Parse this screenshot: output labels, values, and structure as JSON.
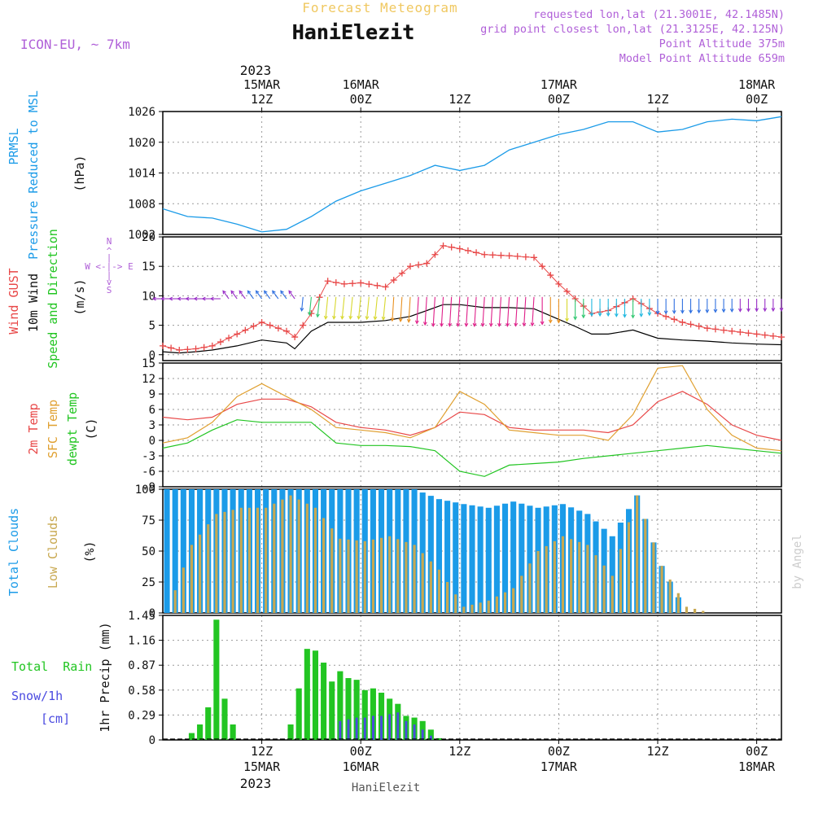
{
  "header": {
    "title": "Forecast Meteogram",
    "location": "HaniElezit",
    "model": "ICON-EU, ~ 7km",
    "requested": "requested lon,lat (21.3001E, 42.1485N)",
    "gridpoint": "grid point closest lon,lat (21.3125E, 42.125N)",
    "point_alt": "Point Altitude 375m",
    "model_alt": "Model Point Altitude 659m",
    "year": "2023",
    "footer": "HaniElezit",
    "credit": "by Angel"
  },
  "time_axis": {
    "start_hour": 0,
    "end_hour": 75,
    "top_ticks": [
      {
        "h": 12,
        "l1": "15MAR",
        "l2": "12Z"
      },
      {
        "h": 24,
        "l1": "16MAR",
        "l2": "00Z"
      },
      {
        "h": 36,
        "l1": "",
        "l2": "12Z"
      },
      {
        "h": 48,
        "l1": "17MAR",
        "l2": "00Z"
      },
      {
        "h": 60,
        "l1": "",
        "l2": "12Z"
      },
      {
        "h": 72,
        "l1": "18MAR",
        "l2": "00Z"
      }
    ],
    "bottom_ticks": [
      {
        "h": 12,
        "l1": "12Z",
        "l2": "15MAR"
      },
      {
        "h": 24,
        "l1": "00Z",
        "l2": "16MAR"
      },
      {
        "h": 36,
        "l1": "12Z",
        "l2": ""
      },
      {
        "h": 48,
        "l1": "00Z",
        "l2": "17MAR"
      },
      {
        "h": 60,
        "l1": "12Z",
        "l2": ""
      },
      {
        "h": 72,
        "l1": "00Z",
        "l2": "18MAR"
      }
    ]
  },
  "panel_labels": {
    "p1": {
      "a": "PRMSL",
      "b": "Pressure Reduced to MSL",
      "unit": "(hPa)"
    },
    "p2": {
      "a": "Wind GUST",
      "b": "10m Wind",
      "c": "Speed and Direction",
      "unit": "(m/s)",
      "rose": "W <-|-> E"
    },
    "p3": {
      "a": "2m Temp",
      "b": "SFC Temp",
      "c": "dewpt Temp",
      "unit": "(C)"
    },
    "p4": {
      "a": "Total Clouds",
      "b": "Low Clouds",
      "unit": "(%)"
    },
    "p5": {
      "a": "Total  Rain",
      "b": "Snow/1h",
      "c": "[cm]",
      "unit": "1hr Precip (mm)"
    }
  },
  "colors": {
    "pressure": "#1b9be8",
    "gust": "#e84848",
    "wind": "#000000",
    "temp2m": "#e84848",
    "sfc": "#e0a030",
    "dewpt": "#22c522",
    "total_clouds": "#1b9be8",
    "low_clouds": "#c8a850",
    "rain": "#22c522",
    "snow": "#4a4ae0",
    "header_gold": "#f0c860",
    "header_purple": "#b060d8"
  },
  "chart_data": [
    {
      "type": "line",
      "name": "PRMSL",
      "ylim": [
        1002,
        1026
      ],
      "yticks": [
        1002,
        1008,
        1014,
        1020,
        1026
      ],
      "x": [
        0,
        3,
        6,
        9,
        12,
        15,
        18,
        21,
        24,
        27,
        30,
        33,
        36,
        39,
        42,
        45,
        48,
        51,
        54,
        57,
        60,
        63,
        66,
        69,
        72,
        75
      ],
      "series": [
        {
          "values": [
            1007.0,
            1005.5,
            1005.2,
            1004.0,
            1002.5,
            1003.0,
            1005.5,
            1008.5,
            1010.5,
            1012.0,
            1013.5,
            1015.5,
            1014.5,
            1015.5,
            1018.5,
            1020.0,
            1021.5,
            1022.5,
            1024.0,
            1024.0,
            1022.0,
            1022.5,
            1024.0,
            1024.5,
            1024.2,
            1025.0
          ]
        }
      ]
    },
    {
      "type": "line",
      "name": "Wind",
      "ylim": [
        -1,
        20
      ],
      "yticks": [
        0,
        5,
        10,
        15,
        20
      ],
      "x": [
        0,
        2,
        4,
        6,
        9,
        12,
        15,
        16,
        18,
        20,
        22,
        24,
        27,
        30,
        32,
        34,
        36,
        39,
        42,
        45,
        48,
        50,
        52,
        54,
        57,
        60,
        63,
        66,
        69,
        72,
        75
      ],
      "series": [
        {
          "values": [
            1.5,
            0.8,
            1.0,
            1.5,
            3.5,
            5.5,
            4.0,
            3.0,
            7.0,
            12.5,
            12.0,
            12.2,
            11.5,
            15.0,
            15.5,
            18.5,
            18.0,
            17.0,
            16.8,
            16.5,
            12.0,
            9.5,
            7.0,
            7.5,
            9.5,
            7.0,
            5.5,
            4.5,
            4.0,
            3.5,
            3.0
          ]
        },
        {
          "values": [
            0.5,
            0.3,
            0.5,
            0.8,
            1.5,
            2.5,
            2.0,
            1.0,
            4.0,
            5.5,
            5.5,
            5.5,
            5.8,
            6.5,
            7.5,
            8.5,
            8.5,
            8.0,
            8.0,
            7.8,
            6.0,
            4.8,
            3.5,
            3.5,
            4.2,
            2.8,
            2.5,
            2.3,
            2.0,
            1.8,
            1.7
          ]
        }
      ]
    },
    {
      "type": "line",
      "name": "Temperature",
      "ylim": [
        -9,
        15
      ],
      "yticks": [
        -9,
        -6,
        -3,
        0,
        3,
        6,
        9,
        12,
        15
      ],
      "x": [
        0,
        3,
        6,
        9,
        12,
        15,
        18,
        21,
        24,
        27,
        30,
        33,
        36,
        39,
        42,
        45,
        48,
        51,
        54,
        57,
        60,
        63,
        66,
        69,
        72,
        75
      ],
      "series": [
        {
          "values": [
            4.5,
            4.0,
            4.5,
            7.0,
            8.0,
            8.0,
            6.5,
            3.5,
            2.5,
            2.0,
            1.0,
            2.5,
            5.5,
            5.0,
            2.5,
            2.0,
            2.0,
            2.0,
            1.5,
            3.0,
            7.5,
            9.5,
            7.0,
            3.0,
            1.0,
            0.0
          ]
        },
        {
          "values": [
            -0.5,
            0.5,
            3.5,
            8.5,
            11.0,
            8.5,
            6.0,
            2.5,
            2.0,
            1.5,
            0.5,
            2.5,
            9.5,
            7.0,
            2.0,
            1.5,
            1.0,
            1.0,
            0.0,
            5.0,
            14.0,
            14.5,
            6.0,
            1.0,
            -1.5,
            -2.0
          ]
        },
        {
          "values": [
            -1.5,
            -0.5,
            2.0,
            4.0,
            3.5,
            3.5,
            3.5,
            -0.5,
            -1.0,
            -1.0,
            -1.2,
            -2.0,
            -6.0,
            -7.0,
            -4.8,
            -4.5,
            -4.2,
            -3.5,
            -3.0,
            -2.5,
            -2.0,
            -1.5,
            -1.0,
            -1.5,
            -2.0,
            -2.5
          ]
        }
      ]
    },
    {
      "type": "bar",
      "name": "Clouds",
      "ylim": [
        0,
        100
      ],
      "yticks": [
        0,
        25,
        50,
        75,
        100
      ],
      "x": [
        0,
        3,
        6,
        9,
        12,
        15,
        18,
        21,
        24,
        27,
        30,
        33,
        36,
        39,
        42,
        45,
        48,
        51,
        54,
        57,
        60,
        63,
        66,
        69,
        72,
        75
      ],
      "series": [
        {
          "values": [
            100,
            100,
            100,
            100,
            100,
            100,
            100,
            100,
            100,
            100,
            100,
            92,
            88,
            85,
            90,
            85,
            88,
            80,
            62,
            95,
            38,
            0,
            0,
            0,
            0,
            0
          ]
        },
        {
          "values": [
            0,
            55,
            80,
            85,
            85,
            95,
            85,
            60,
            58,
            62,
            55,
            35,
            5,
            10,
            20,
            50,
            62,
            55,
            30,
            95,
            38,
            5,
            0,
            0,
            0,
            0
          ]
        }
      ]
    },
    {
      "type": "bar",
      "name": "Precipitation",
      "ylim": [
        0,
        1.45
      ],
      "yticks": [
        0,
        0.29,
        0.58,
        0.87,
        1.16,
        1.45
      ],
      "x": [
        1,
        2,
        3,
        4,
        5,
        6,
        7,
        8,
        9,
        10,
        11,
        12,
        13,
        14,
        15,
        16,
        17,
        18,
        19,
        20,
        21,
        22,
        23,
        24,
        25,
        26,
        27,
        28,
        29,
        30,
        31,
        32,
        33
      ],
      "series": [
        {
          "values": [
            0,
            0,
            0.08,
            0.18,
            0.38,
            1.4,
            0.48,
            0.18,
            0,
            0,
            0,
            0,
            0,
            0,
            0.18,
            0.6,
            1.06,
            1.04,
            0.9,
            0.68,
            0.8,
            0.72,
            0.7,
            0.58,
            0.6,
            0.55,
            0.48,
            0.42,
            0.28,
            0.26,
            0.22,
            0.12,
            0.02
          ]
        },
        {
          "values": [
            0,
            0,
            0,
            0,
            0,
            0,
            0,
            0,
            0,
            0,
            0,
            0,
            0,
            0,
            0,
            0,
            0,
            0,
            0,
            0,
            0.22,
            0.24,
            0.26,
            0.26,
            0.28,
            0.28,
            0.3,
            0.32,
            0.22,
            0.18,
            0.12,
            0.05,
            0
          ]
        }
      ]
    }
  ]
}
